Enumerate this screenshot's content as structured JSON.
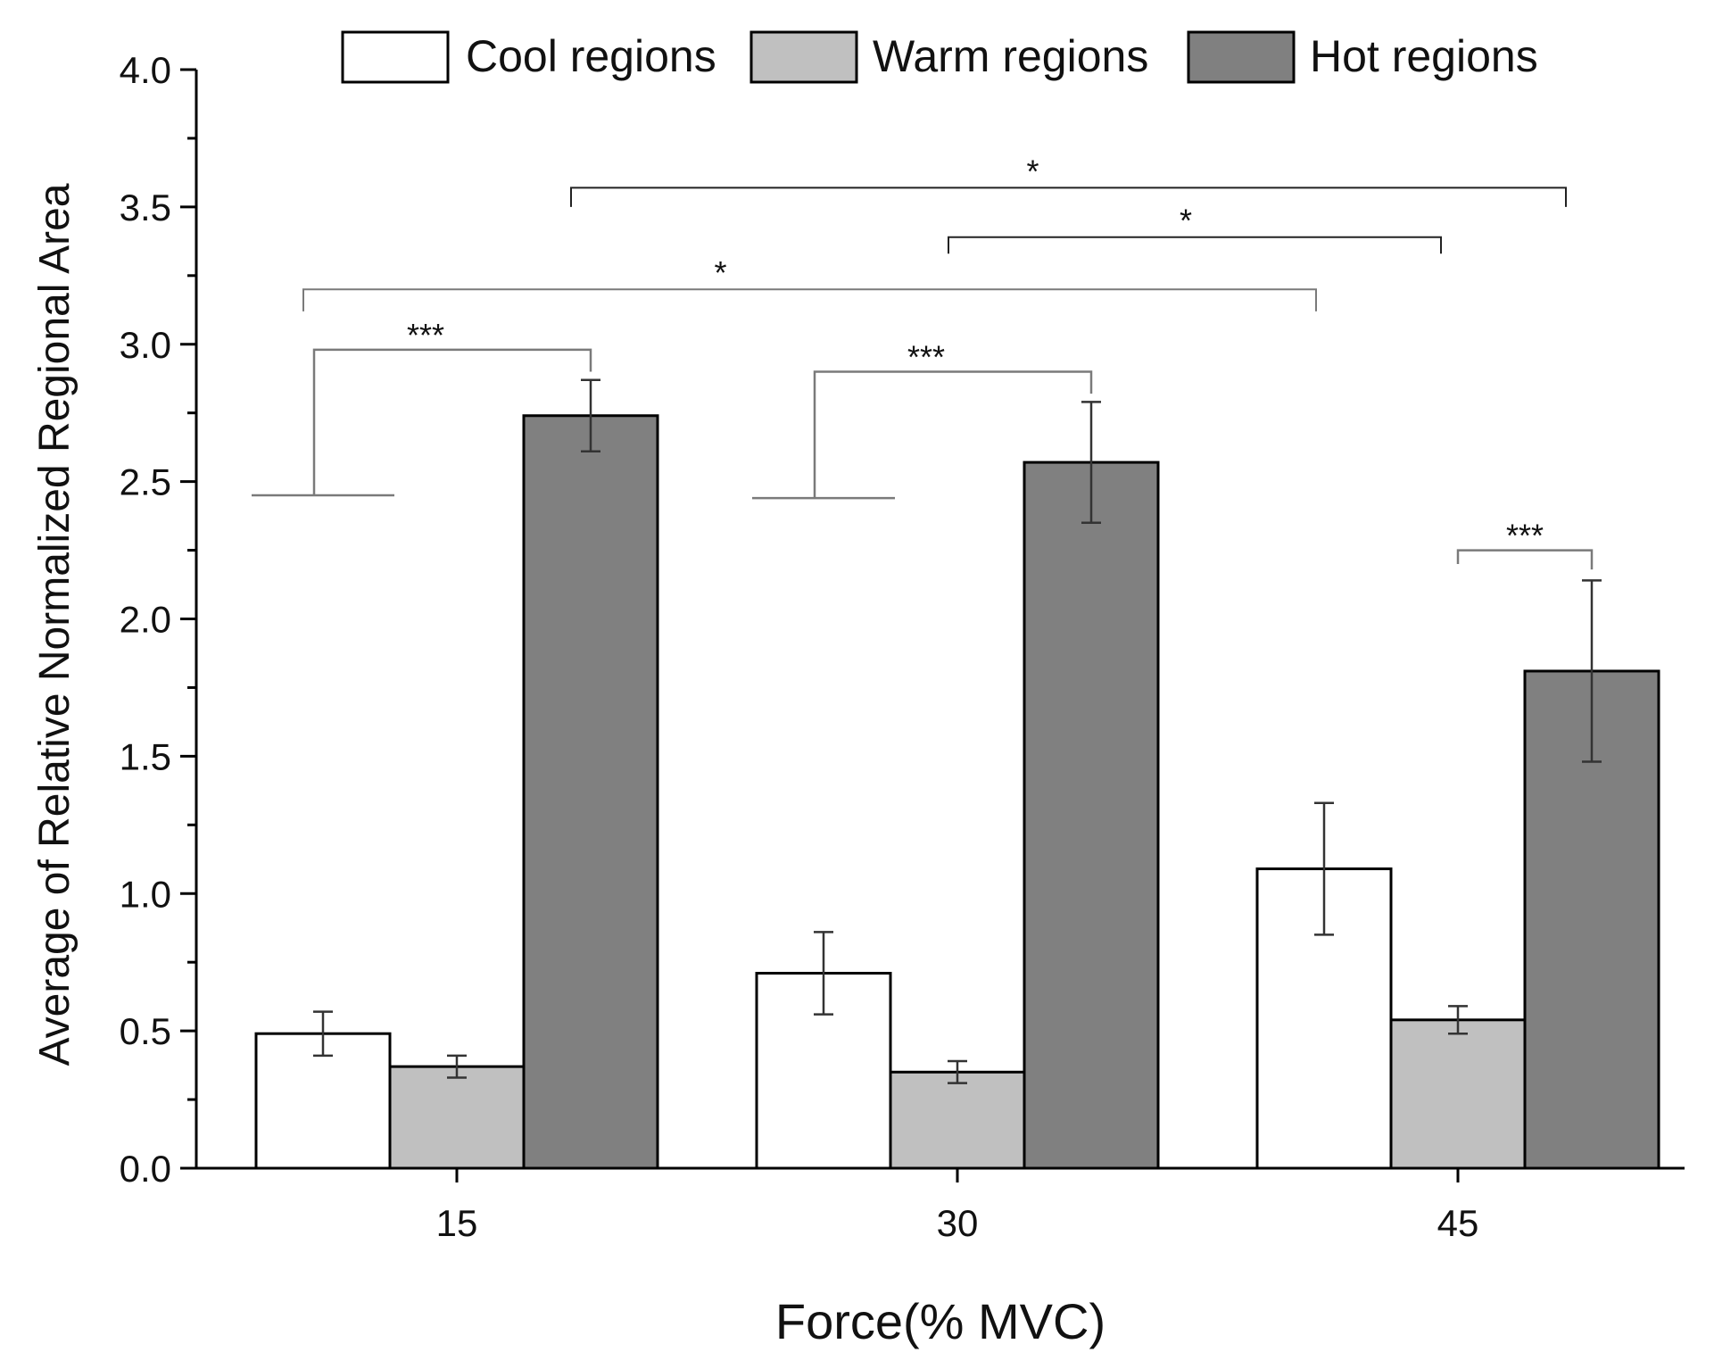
{
  "chart_data": {
    "type": "bar",
    "title": "",
    "xlabel": "Force(% MVC)",
    "ylabel": "Average of Relative Normalized Regional Area",
    "categories": [
      "15",
      "30",
      "45"
    ],
    "ylim": [
      0.0,
      4.0
    ],
    "yticks": [
      "0.0",
      "0.5",
      "1.0",
      "1.5",
      "2.0",
      "2.5",
      "3.0",
      "3.5",
      "4.0"
    ],
    "grid": false,
    "legend_position": "top",
    "series": [
      {
        "name": "Cool regions",
        "color": "#ffffff",
        "values": [
          0.49,
          0.71,
          1.09
        ],
        "errors": [
          0.08,
          0.15,
          0.24
        ]
      },
      {
        "name": "Warm regions",
        "color": "#c0c0c0",
        "values": [
          0.37,
          0.35,
          0.54
        ],
        "errors": [
          0.04,
          0.04,
          0.05
        ]
      },
      {
        "name": "Hot regions",
        "color": "#808080",
        "values": [
          2.74,
          2.57,
          1.81
        ],
        "errors": [
          0.13,
          0.22,
          0.33
        ]
      }
    ],
    "annotations": [
      {
        "label": "***",
        "type": "within-group",
        "category": "15",
        "y": 2.98
      },
      {
        "label": "***",
        "type": "within-group",
        "category": "30",
        "y": 2.9
      },
      {
        "label": "***",
        "type": "within-group",
        "category": "45",
        "y": 2.25
      },
      {
        "label": "*",
        "type": "between-group",
        "from": "15 Cool",
        "to": "45 Cool",
        "y": 3.2
      },
      {
        "label": "*",
        "type": "between-group",
        "from": "30 Warm",
        "to": "45 Warm",
        "y": 3.39
      },
      {
        "label": "*",
        "type": "between-group",
        "from": "15 Hot",
        "to": "45 Hot",
        "y": 3.57
      }
    ]
  }
}
